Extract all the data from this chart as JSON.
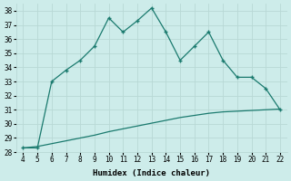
{
  "x_main": [
    4,
    5,
    6,
    7,
    8,
    9,
    10,
    11,
    12,
    13,
    14,
    15,
    16,
    17,
    18,
    19,
    20,
    21,
    22
  ],
  "y_main": [
    28.3,
    28.3,
    33.0,
    33.8,
    34.5,
    35.5,
    37.5,
    36.5,
    37.3,
    38.2,
    36.5,
    34.5,
    35.5,
    36.5,
    34.5,
    33.3,
    33.3,
    32.5,
    31.0
  ],
  "x_ref": [
    4,
    5,
    6,
    7,
    8,
    9,
    10,
    11,
    12,
    13,
    14,
    15,
    16,
    17,
    18,
    19,
    20,
    21,
    22
  ],
  "y_ref": [
    28.3,
    28.4,
    28.6,
    28.8,
    29.0,
    29.2,
    29.45,
    29.65,
    29.85,
    30.05,
    30.25,
    30.45,
    30.6,
    30.75,
    30.85,
    30.9,
    30.95,
    31.0,
    31.05
  ],
  "line_color": "#1a7a6e",
  "bg_color": "#cdecea",
  "grid_color": "#b8d8d5",
  "xlabel": "Humidex (Indice chaleur)",
  "ylim": [
    28,
    38.5
  ],
  "xlim": [
    3.5,
    22.5
  ],
  "yticks": [
    28,
    29,
    30,
    31,
    32,
    33,
    34,
    35,
    36,
    37,
    38
  ],
  "xticks": [
    4,
    5,
    6,
    7,
    8,
    9,
    10,
    11,
    12,
    13,
    14,
    15,
    16,
    17,
    18,
    19,
    20,
    21,
    22
  ]
}
